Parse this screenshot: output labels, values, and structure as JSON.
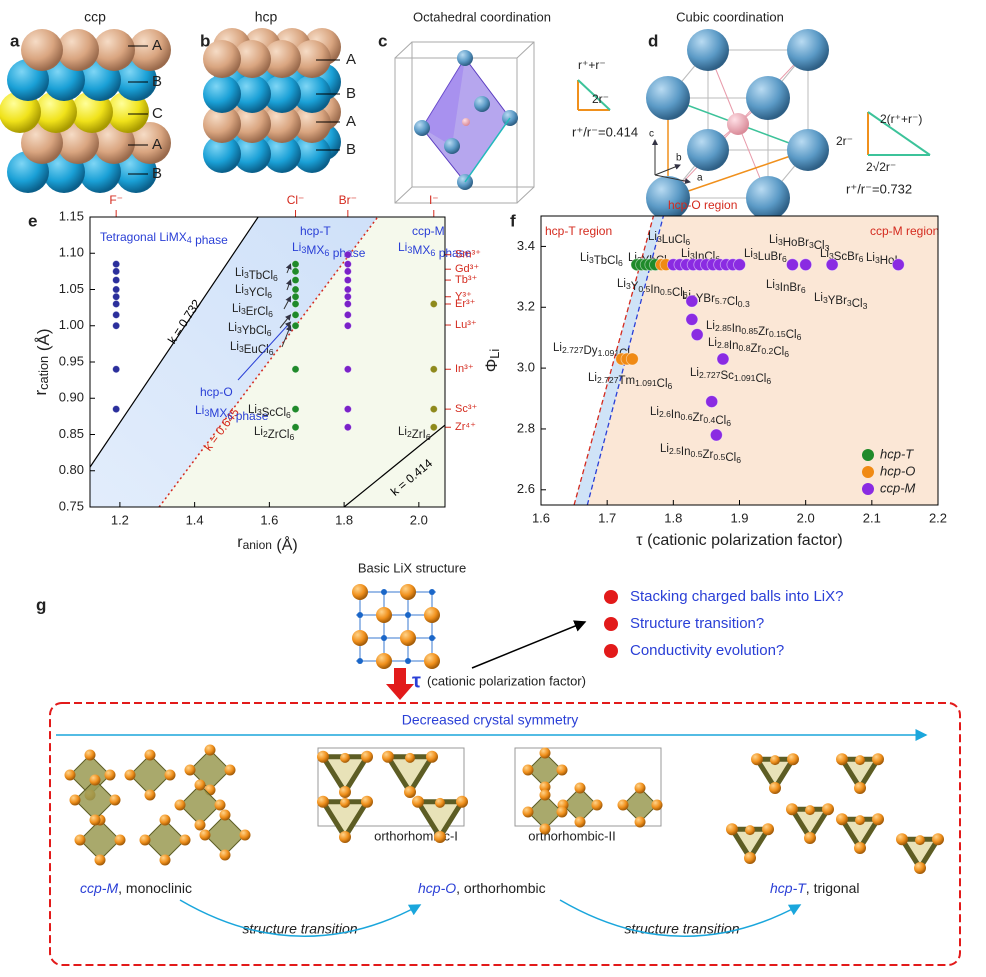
{
  "panel_a": {
    "label": "a",
    "title": "ccp",
    "layers": [
      "A",
      "B",
      "C",
      "A",
      "B"
    ]
  },
  "panel_b": {
    "label": "b",
    "title": "hcp",
    "layers": [
      "A",
      "B",
      "A",
      "B"
    ]
  },
  "panel_c": {
    "label": "c",
    "title": "Octahedral coordination",
    "side": "r⁺+r⁻",
    "base": "2r⁻",
    "ratio": "r⁺/r⁻=0.414"
  },
  "panel_d": {
    "label": "d",
    "title": "Cubic coordination",
    "side": "2r⁻",
    "hyp": "2(r⁺+r⁻)",
    "base": "2√2r⁻",
    "ratio": "r⁺/r⁻=0.732",
    "axes": [
      "c",
      "b",
      "a"
    ]
  },
  "chart_data": [
    {
      "type": "scatter",
      "panel": "e",
      "xlabel": "ranion (Å)",
      "ylabel": "rcation (Å)",
      "xlim": [
        1.12,
        2.07
      ],
      "ylim": [
        0.75,
        1.15
      ],
      "xticks": [
        1.2,
        1.4,
        1.6,
        1.8,
        {
          "value": 2.0,
          "label": "2.0"
        }
      ],
      "yticks": [
        0.75,
        {
          "value": 0.8,
          "label": "0.80"
        },
        0.85,
        {
          "value": 0.9,
          "label": "0.90"
        },
        0.95,
        {
          "value": 1.0,
          "label": "1.00"
        },
        1.05,
        {
          "value": 1.1,
          "label": "1.10"
        },
        1.15
      ],
      "top_labels": [
        {
          "text": "F⁻",
          "x": 1.19
        },
        {
          "text": "Cl⁻",
          "x": 1.67
        },
        {
          "text": "Br⁻",
          "x": 1.81
        },
        {
          "text": "I⁻",
          "x": 2.04
        }
      ],
      "right_labels": [
        {
          "text": "Sm³⁺",
          "y": 1.098
        },
        {
          "text": "Gd³⁺",
          "y": 1.078
        },
        {
          "text": "Tb³⁺",
          "y": 1.063
        },
        {
          "text": "Y³⁺",
          "y": 1.04
        },
        {
          "text": "Er³⁺",
          "y": 1.03
        },
        {
          "text": "Lu³⁺",
          "y": 1.001
        },
        {
          "text": "In³⁺",
          "y": 0.94
        },
        {
          "text": "Sc³⁺",
          "y": 0.885
        },
        {
          "text": "Zr⁴⁺",
          "y": 0.86
        }
      ],
      "series": [
        {
          "color": "#2b2f9c",
          "x": [
            1.19,
            1.19,
            1.19,
            1.19,
            1.19,
            1.19,
            1.19,
            1.19,
            1.19,
            1.19
          ],
          "y": [
            1.085,
            1.075,
            1.063,
            1.05,
            1.04,
            1.03,
            1.015,
            1.0,
            0.94,
            0.885
          ]
        },
        {
          "color": "#1f8a2a",
          "x": [
            1.67,
            1.67,
            1.67,
            1.67,
            1.67,
            1.67,
            1.67,
            1.67,
            1.67,
            1.67,
            1.67
          ],
          "y": [
            1.085,
            1.075,
            1.063,
            1.05,
            1.04,
            1.03,
            1.015,
            1.0,
            0.94,
            0.885,
            0.86
          ]
        },
        {
          "color": "#7a22c8",
          "x": [
            1.81,
            1.81,
            1.81,
            1.81,
            1.81,
            1.81,
            1.81,
            1.81,
            1.81,
            1.81,
            1.81,
            1.81
          ],
          "y": [
            1.098,
            1.085,
            1.075,
            1.063,
            1.05,
            1.04,
            1.03,
            1.015,
            1.0,
            0.94,
            0.885,
            0.86
          ]
        },
        {
          "color": "#8e8a1c",
          "x": [
            2.04,
            2.04,
            2.04,
            2.04
          ],
          "y": [
            1.03,
            0.94,
            0.885,
            0.86
          ]
        }
      ],
      "lines": [
        {
          "label": "k = 0.732",
          "color": "#000000",
          "dash": "solid",
          "x": [
            1.12,
            1.57
          ],
          "y": [
            0.805,
            1.15
          ]
        },
        {
          "label": "k = 0.645",
          "color": "#d42a1e",
          "dash": "dotted",
          "x": [
            1.305,
            1.89
          ],
          "y": [
            0.75,
            1.15
          ]
        },
        {
          "label": "k = 0.414",
          "color": "#000000",
          "dash": "solid",
          "x": [
            1.8,
            2.07
          ],
          "y": [
            0.75,
            0.863
          ]
        }
      ],
      "regions": [
        [
          "Tetragonal LiMX4 phase"
        ],
        [
          "hcp-T",
          "Li3MX6 phase"
        ],
        [
          "ccp-M",
          "Li3MX6 phase"
        ],
        [
          "hcp-O",
          "Li3MX6 phase"
        ]
      ],
      "compounds": [
        "Li3TbCl6",
        "Li3YCl6",
        "Li3ErCl6",
        "Li3YbCl6",
        "Li3EuCl6",
        "Li3ScCl6",
        "Li2ZrCl6",
        "Li2ZrI6"
      ]
    },
    {
      "type": "scatter",
      "panel": "f",
      "xlabel": "τ (cationic polarization factor)",
      "ylabel": "ΦLi",
      "xlim": [
        1.6,
        2.2
      ],
      "ylim": [
        2.55,
        3.5
      ],
      "xticks": [
        1.6,
        1.7,
        1.8,
        1.9,
        {
          "value": 2.0,
          "label": "2.0"
        },
        2.1,
        2.2
      ],
      "yticks": [
        2.6,
        2.8,
        {
          "value": 3.0,
          "label": "3.0"
        },
        3.2,
        3.4
      ],
      "legend": "lower right",
      "series": [
        {
          "name": "hcp-T",
          "color": "#1f8a2a",
          "x": [
            1.745,
            1.752,
            1.759,
            1.766,
            1.773
          ],
          "y": [
            3.34,
            3.34,
            3.34,
            3.34,
            3.34
          ]
        },
        {
          "name": "hcp-O",
          "color": "#f08a14",
          "x": [
            1.782,
            1.789,
            1.722,
            1.73,
            1.738
          ],
          "y": [
            3.34,
            3.34,
            3.03,
            3.03,
            3.03
          ]
        },
        {
          "name": "ccp-M",
          "color": "#8a2be2",
          "x": [
            1.8,
            1.81,
            1.82,
            1.83,
            1.84,
            1.85,
            1.86,
            1.87,
            1.88,
            1.89,
            1.9,
            1.98,
            2.0,
            2.04,
            2.14,
            1.828,
            1.828,
            1.836,
            1.875,
            1.858,
            1.865
          ],
          "y": [
            3.34,
            3.34,
            3.34,
            3.34,
            3.34,
            3.34,
            3.34,
            3.34,
            3.34,
            3.34,
            3.34,
            3.34,
            3.34,
            3.34,
            3.34,
            3.22,
            3.16,
            3.11,
            3.03,
            2.89,
            2.78
          ]
        }
      ],
      "boundaries": [
        {
          "color": "#d42a1e",
          "x": [
            1.65,
            1.77
          ],
          "y": [
            2.55,
            3.5
          ]
        },
        {
          "color": "#2a3fd6",
          "x": [
            1.67,
            1.785
          ],
          "y": [
            2.55,
            3.5
          ]
        }
      ],
      "regions": [
        "hcp-T region",
        "hcp-O region",
        "ccp-M region"
      ],
      "compounds": [
        "Li3TbCl6",
        "Li3LuCl6",
        "Li3YbCl6",
        "Li3InCl6",
        "Li3LuBr6",
        "Li3HoBr3Cl3",
        "Li3ScBr6",
        "Li3HoI6",
        "Li3Y0.5In0.5Cl6",
        "Li3YBr5.7Cl0.3",
        "Li3InBr6",
        "Li3YBr3Cl3",
        "Li2.85In0.85Zr0.15Cl6",
        "Li2.8In0.8Zr0.2Cl6",
        "Li2.727Sc1.091Cl6",
        "Li2.727Dy1.091Cl6",
        "Li2.727Tm1.091Cl6",
        "Li2.6In0.6Zr0.4Cl6",
        "Li2.5In0.5Zr0.5Cl6"
      ]
    }
  ],
  "panel_g": {
    "label": "g",
    "basic": "Basic LiX structure",
    "tau": "τ",
    "tau_text": "(cationic polarization factor)",
    "questions": [
      "Stacking charged balls into LiX?",
      "Structure transition?",
      "Conductivity evolution?"
    ],
    "trend": "Decreased crystal symmetry",
    "sub_labels": [
      "orthorhombic-I",
      "orthorhombic-II"
    ],
    "phases": [
      [
        "ccp-M",
        ", monoclinic"
      ],
      [
        "hcp-O",
        ", orthorhombic"
      ],
      [
        "hcp-T",
        ", trigonal"
      ]
    ],
    "transitions": [
      "structure transition",
      "structure transition"
    ]
  }
}
